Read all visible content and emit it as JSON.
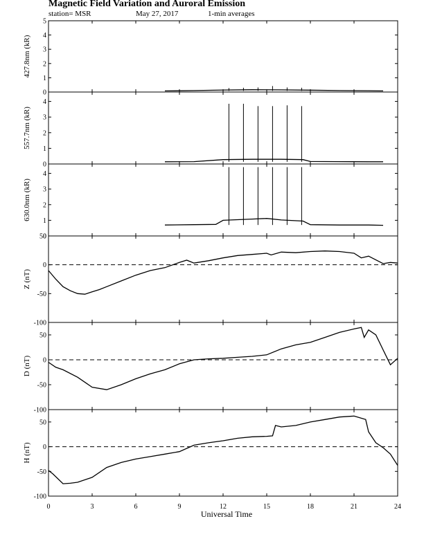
{
  "header": {
    "title": "Magnetic Field Variation and Auroral Emission",
    "station": "station= MSR",
    "date": "May 27, 2017",
    "averaging": "1-min averages"
  },
  "chart_data": {
    "type": "line",
    "xlabel": "Universal Time",
    "xlim": [
      0,
      24
    ],
    "xticks": [
      "0",
      "3",
      "6",
      "9",
      "12",
      "15",
      "18",
      "21",
      "24"
    ],
    "panels": [
      {
        "ylabel": "427.8nm (kR)",
        "ylim": [
          0,
          5
        ],
        "yticks": [
          "0",
          "1",
          "2",
          "3",
          "4",
          "5"
        ],
        "zero_line": false,
        "x": [
          8,
          10,
          12,
          14,
          16,
          18,
          20,
          22,
          23
        ],
        "values": [
          0.08,
          0.1,
          0.14,
          0.16,
          0.15,
          0.13,
          0.1,
          0.09,
          0.08
        ],
        "spikes": [
          {
            "x": 12.4,
            "y": 0.28
          },
          {
            "x": 13.4,
            "y": 0.3
          },
          {
            "x": 14.4,
            "y": 0.32
          },
          {
            "x": 15.4,
            "y": 0.42
          },
          {
            "x": 16.4,
            "y": 0.32
          },
          {
            "x": 17.4,
            "y": 0.3
          }
        ]
      },
      {
        "ylabel": "557.7nm (kR)",
        "ylim": [
          0,
          4.6
        ],
        "yticks": [
          "0",
          "1",
          "2",
          "3",
          "4"
        ],
        "zero_line": false,
        "x": [
          8,
          10,
          12,
          14,
          16,
          17.5,
          18,
          20,
          22,
          23
        ],
        "values": [
          0.14,
          0.15,
          0.28,
          0.3,
          0.3,
          0.28,
          0.16,
          0.15,
          0.14,
          0.14
        ],
        "spikes": [
          {
            "x": 12.4,
            "y": 3.85
          },
          {
            "x": 13.4,
            "y": 3.85
          },
          {
            "x": 14.4,
            "y": 3.7
          },
          {
            "x": 15.4,
            "y": 3.7
          },
          {
            "x": 16.4,
            "y": 3.75
          },
          {
            "x": 17.4,
            "y": 3.7
          }
        ]
      },
      {
        "ylabel": "630.0nm (kR)",
        "ylim": [
          0,
          4.6
        ],
        "yticks": [
          "0",
          "1",
          "2",
          "3",
          "4"
        ],
        "zero_line": false,
        "x": [
          8,
          10,
          11.5,
          12,
          14,
          15,
          16,
          17.5,
          18,
          20,
          22,
          23
        ],
        "values": [
          0.7,
          0.72,
          0.74,
          1.0,
          1.08,
          1.12,
          1.02,
          0.95,
          0.72,
          0.7,
          0.7,
          0.68
        ],
        "spikes": [
          {
            "x": 12.4,
            "y": 4.4
          },
          {
            "x": 13.4,
            "y": 4.4
          },
          {
            "x": 14.4,
            "y": 4.4
          },
          {
            "x": 15.4,
            "y": 4.4
          },
          {
            "x": 16.4,
            "y": 4.4
          },
          {
            "x": 17.4,
            "y": 4.4
          }
        ]
      },
      {
        "ylabel": "Z (nT)",
        "ylim": [
          -100,
          50
        ],
        "yticks": [
          "-100",
          "-50",
          "0",
          "50"
        ],
        "zero_line": true,
        "x": [
          0,
          0.5,
          1,
          1.5,
          2,
          2.5,
          3,
          3.5,
          4,
          5,
          6,
          7,
          8,
          9,
          9.5,
          10,
          11,
          12,
          13,
          14,
          15,
          15.3,
          16,
          17,
          18,
          19,
          20,
          21,
          21.5,
          22,
          23,
          23.5,
          24
        ],
        "values": [
          -10,
          -25,
          -38,
          -45,
          -50,
          -51,
          -47,
          -43,
          -38,
          -28,
          -18,
          -10,
          -5,
          4,
          8,
          3,
          7,
          12,
          16,
          18,
          20,
          17,
          22,
          21,
          23,
          24,
          23,
          20,
          12,
          15,
          2,
          4,
          3
        ]
      },
      {
        "ylabel": "D (nT)",
        "ylim": [
          -100,
          75
        ],
        "yticks": [
          "-100",
          "-50",
          "0",
          "50"
        ],
        "zero_line": true,
        "x": [
          0,
          0.5,
          1,
          2,
          3,
          4,
          5,
          6,
          7,
          8,
          9,
          10,
          11,
          12,
          13,
          14,
          15,
          16,
          17,
          18,
          19,
          20,
          21,
          21.5,
          21.7,
          22,
          22.5,
          23,
          23.5,
          24
        ],
        "values": [
          -5,
          -15,
          -20,
          -35,
          -55,
          -60,
          -50,
          -38,
          -28,
          -20,
          -8,
          0,
          2,
          3,
          5,
          7,
          10,
          22,
          30,
          35,
          45,
          55,
          62,
          65,
          45,
          60,
          50,
          20,
          -10,
          3
        ]
      },
      {
        "ylabel": "H (nT)",
        "ylim": [
          -100,
          75
        ],
        "yticks": [
          "-100",
          "-50",
          "0",
          "50"
        ],
        "zero_line": true,
        "x": [
          0,
          0.3,
          1,
          1.5,
          2,
          3,
          4,
          5,
          6,
          7,
          8,
          9,
          10,
          11,
          12,
          13,
          14,
          15,
          15.4,
          15.6,
          16,
          17,
          18,
          19,
          20,
          21,
          21.8,
          22,
          22.5,
          23,
          23.5,
          24
        ],
        "values": [
          -48,
          -55,
          -75,
          -74,
          -72,
          -62,
          -42,
          -32,
          -25,
          -20,
          -15,
          -10,
          3,
          8,
          12,
          17,
          20,
          21,
          22,
          43,
          40,
          43,
          50,
          55,
          60,
          62,
          55,
          30,
          8,
          -2,
          -15,
          -38
        ]
      }
    ]
  }
}
